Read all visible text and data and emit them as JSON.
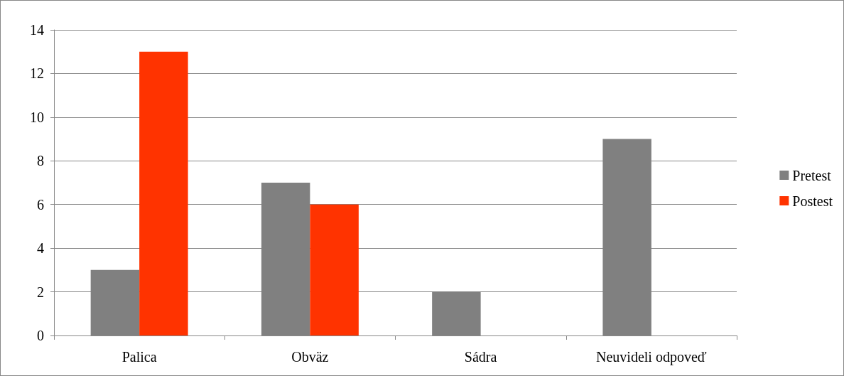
{
  "chart_data": {
    "type": "bar",
    "categories": [
      "Palica",
      "Obväz",
      "Sádra",
      "Neuvideli odpoveď"
    ],
    "series": [
      {
        "name": "Pretest",
        "color": "#808080",
        "values": [
          3,
          7,
          2,
          9
        ]
      },
      {
        "name": "Postest",
        "color": "#ff3300",
        "values": [
          13,
          6,
          0,
          0
        ]
      }
    ],
    "ylim": [
      0,
      14
    ],
    "yticks": [
      0,
      2,
      4,
      6,
      8,
      10,
      12,
      14
    ],
    "grid": "y",
    "legend": "right"
  }
}
